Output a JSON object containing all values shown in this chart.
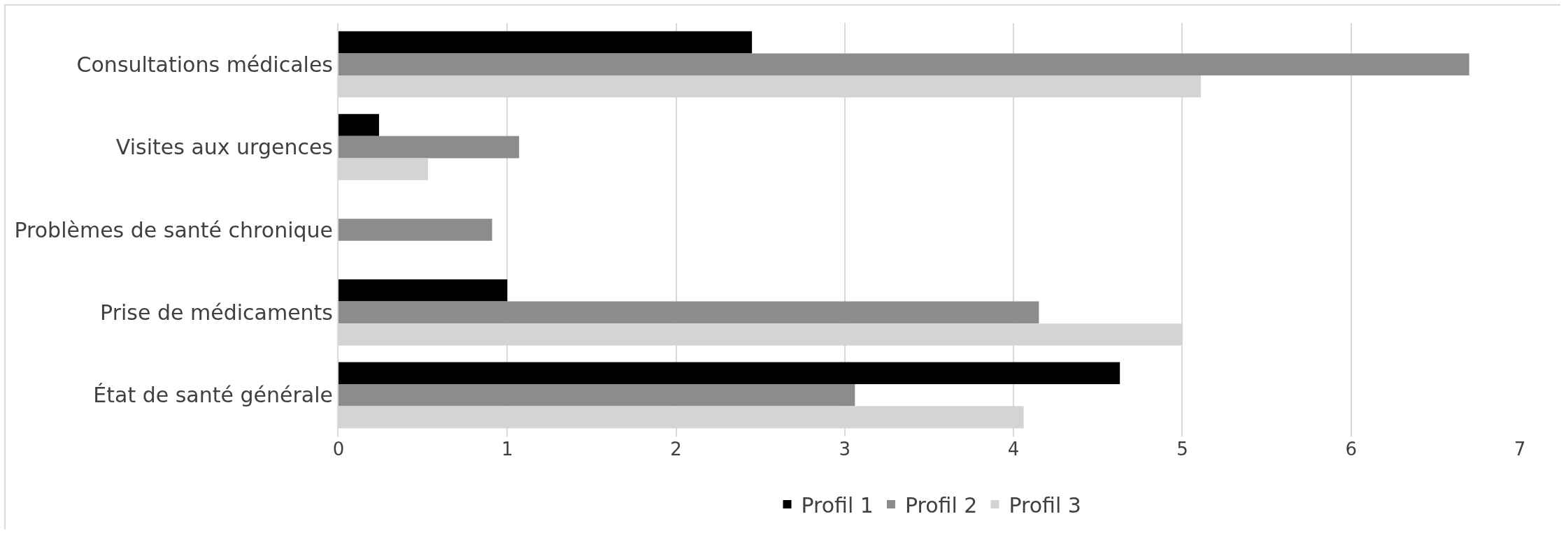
{
  "chart_data": {
    "type": "bar",
    "orientation": "horizontal",
    "categories": [
      "Consultations médicales",
      "Visites aux urgences",
      "Problèmes de santé chronique",
      "Prise de médicaments",
      "État de santé générale"
    ],
    "series": [
      {
        "name": "Profil 1",
        "color": "#000000",
        "values": [
          2.45,
          0.24,
          null,
          1.0,
          4.63
        ]
      },
      {
        "name": "Profil 2",
        "color": "#8c8c8c",
        "values": [
          6.7,
          1.07,
          0.91,
          4.15,
          3.06
        ]
      },
      {
        "name": "Profil 3",
        "color": "#d4d4d4",
        "values": [
          5.11,
          0.53,
          null,
          5.0,
          4.06
        ]
      }
    ],
    "xlim": [
      0,
      7
    ],
    "xticks": [
      0,
      1,
      2,
      3,
      4,
      5,
      6,
      7
    ],
    "grid": "x",
    "legend": "bottom"
  }
}
